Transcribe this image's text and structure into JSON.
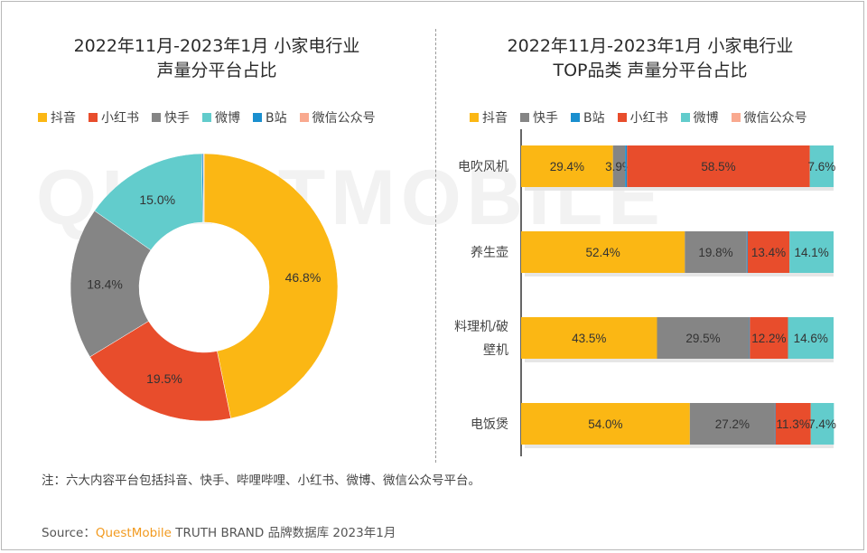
{
  "left_chart": {
    "title_line1": "2022年11月-2023年1月 小家电行业",
    "title_line2": "声量分平台占比"
  },
  "right_chart": {
    "title_line1": "2022年11月-2023年1月 小家电行业",
    "title_line2": "TOP品类 声量分平台占比"
  },
  "watermark": "QUESTMOBILE",
  "note": "注：六大内容平台包括抖音、快手、哔哩哔哩、小红书、微博、微信公众号平台。",
  "source": {
    "prefix": "Source：",
    "brand": "QuestMobile",
    "rest": " TRUTH BRAND 品牌数据库 2023年1月"
  },
  "chart_data": [
    {
      "type": "pie",
      "variant": "donut",
      "title": "2022年11月-2023年1月 小家电行业 声量分平台占比",
      "legend_position": "top",
      "legend": [
        "抖音",
        "小红书",
        "快手",
        "微博",
        "B站",
        "微信公众号"
      ],
      "colors": {
        "抖音": "#fbb714",
        "小红书": "#e84d2c",
        "快手": "#858585",
        "微博": "#62cccc",
        "B站": "#1a8fcf",
        "微信公众号": "#f9a98f"
      },
      "slices": [
        {
          "label": "抖音",
          "value": 46.8,
          "text": "46.8%"
        },
        {
          "label": "小红书",
          "value": 19.5,
          "text": "19.5%"
        },
        {
          "label": "快手",
          "value": 18.4,
          "text": "18.4%"
        },
        {
          "label": "微博",
          "value": 15.0,
          "text": "15.0%"
        },
        {
          "label": "B站",
          "value": 0.2,
          "text": ""
        },
        {
          "label": "微信公众号",
          "value": 0.1,
          "text": ""
        }
      ]
    },
    {
      "type": "bar",
      "orientation": "horizontal",
      "stacked": "percent",
      "title": "2022年11月-2023年1月 小家电行业 TOP品类 声量分平台占比",
      "legend_position": "top",
      "legend": [
        "抖音",
        "快手",
        "B站",
        "小红书",
        "微博",
        "微信公众号"
      ],
      "colors": {
        "抖音": "#fbb714",
        "快手": "#858585",
        "B站": "#1a8fcf",
        "小红书": "#e84d2c",
        "微博": "#62cccc",
        "微信公众号": "#f9a98f"
      },
      "categories": [
        "电吹风机",
        "养生壶",
        "料理机/破壁机",
        "电饭煲"
      ],
      "category_lines": [
        [
          "电吹风机"
        ],
        [
          "养生壶"
        ],
        [
          "料理机/破",
          "壁机"
        ],
        [
          "电饭煲"
        ]
      ],
      "series": [
        {
          "name": "抖音",
          "values": [
            29.4,
            52.4,
            43.5,
            54.0
          ]
        },
        {
          "name": "快手",
          "values": [
            3.9,
            19.8,
            29.5,
            27.2
          ]
        },
        {
          "name": "B站",
          "values": [
            0.6,
            0.3,
            0.2,
            0.2
          ]
        },
        {
          "name": "小红书",
          "values": [
            58.5,
            13.4,
            12.2,
            11.3
          ]
        },
        {
          "name": "微博",
          "values": [
            7.6,
            14.1,
            14.6,
            7.4
          ]
        },
        {
          "name": "微信公众号",
          "values": [
            0.0,
            0.0,
            0.0,
            0.0
          ]
        }
      ],
      "xlim": [
        0,
        100
      ]
    }
  ]
}
